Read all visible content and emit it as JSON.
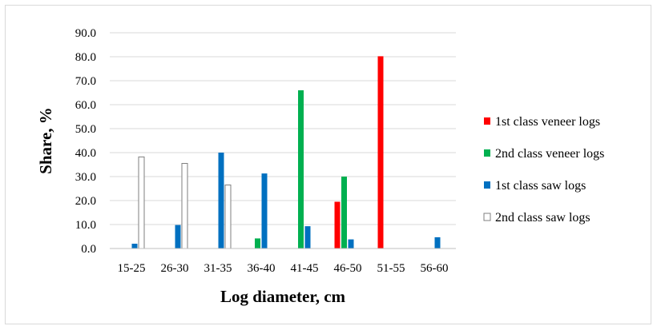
{
  "chart_data": {
    "type": "bar",
    "title": "",
    "xlabel": "Log diameter, cm",
    "ylabel": "Share, %",
    "ylim": [
      0,
      90
    ],
    "yticks": [
      "0.0",
      "10.0",
      "20.0",
      "30.0",
      "40.0",
      "50.0",
      "60.0",
      "70.0",
      "80.0",
      "90.0"
    ],
    "grid": true,
    "legend_position": "right",
    "categories": [
      "15-25",
      "26-30",
      "31-35",
      "36-40",
      "41-45",
      "46-50",
      "51-55",
      "56-60"
    ],
    "series": [
      {
        "name": "1st class veneer logs",
        "color": "#ff0000",
        "values": [
          0,
          0,
          0,
          0,
          0,
          19.5,
          80.2,
          0
        ]
      },
      {
        "name": "2nd class veneer logs",
        "color": "#00b050",
        "values": [
          0,
          0,
          0,
          4.2,
          66.0,
          30.0,
          0,
          0
        ]
      },
      {
        "name": "1st class saw logs",
        "color": "#0070c0",
        "values": [
          2.0,
          9.8,
          40.0,
          31.3,
          9.3,
          3.8,
          0,
          4.7
        ]
      },
      {
        "name": "2nd class saw logs",
        "color": "#ffffff",
        "values": [
          38.2,
          35.5,
          26.5,
          0,
          0,
          0,
          0,
          0
        ]
      }
    ]
  }
}
